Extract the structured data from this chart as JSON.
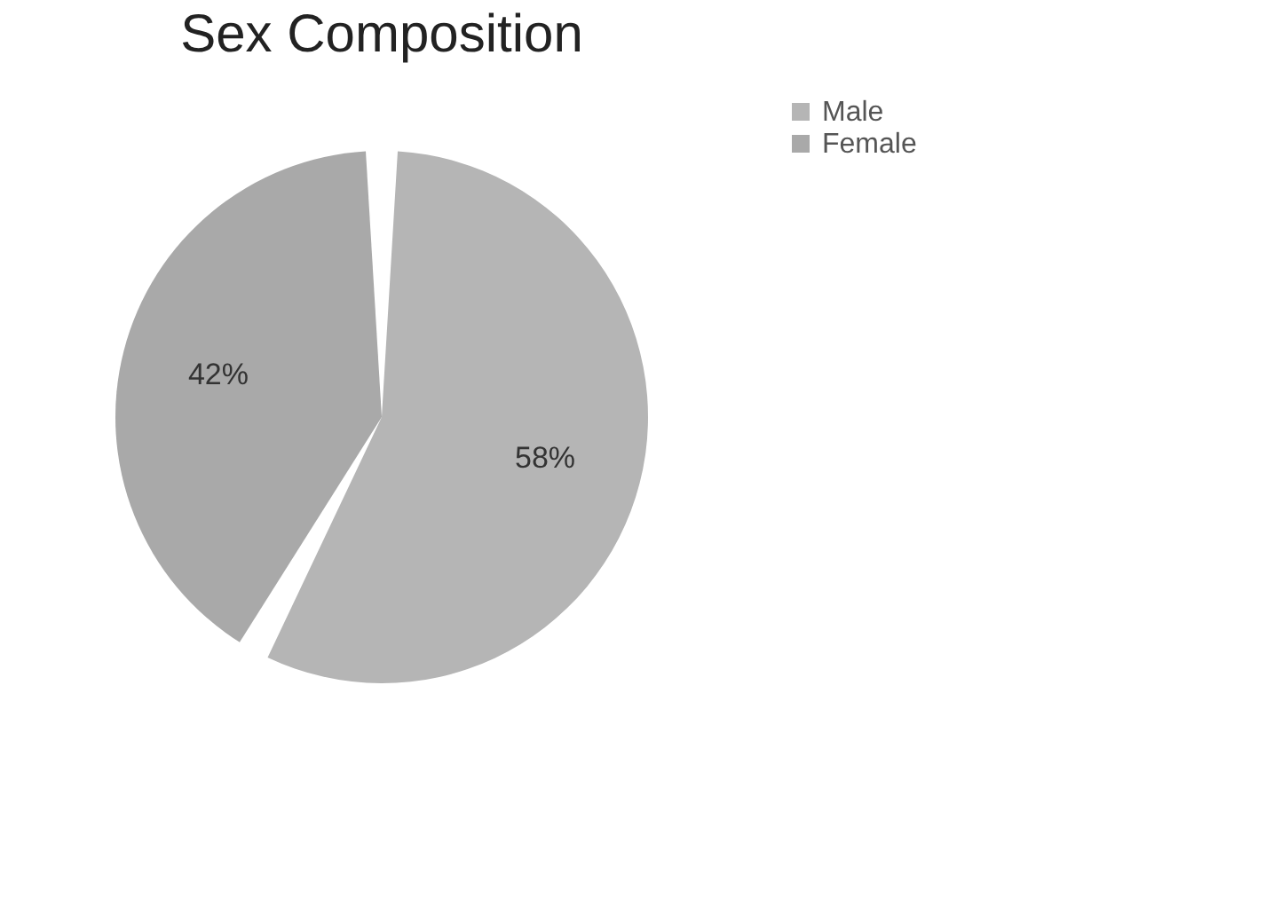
{
  "chart_data": {
    "type": "pie",
    "title": "Sex Composition",
    "categories": [
      "Male",
      "Female"
    ],
    "values": [
      58,
      42
    ],
    "colors": [
      "#b5b5b5",
      "#a9a9a9"
    ],
    "value_labels": [
      "58%",
      "42%"
    ],
    "legend": "right"
  }
}
